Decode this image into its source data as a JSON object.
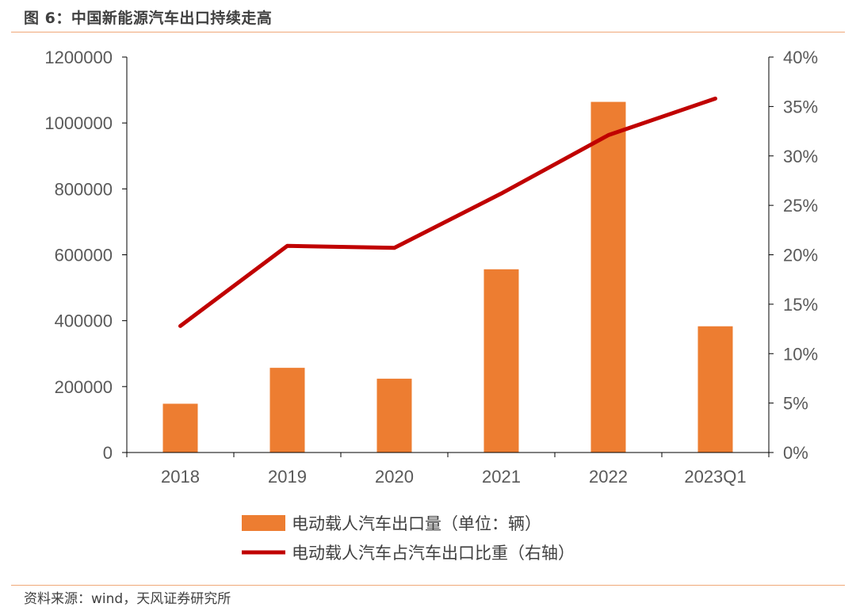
{
  "figure": {
    "title": "图 6：中国新能源汽车出口持续走高",
    "source": "资料来源：wind，天风证券研究所"
  },
  "colors": {
    "bar": "#ED7D31",
    "line": "#C00000",
    "axis": "#000000",
    "text": "#595959",
    "rule": "#F0A878"
  },
  "chart_data": {
    "type": "bar",
    "categories": [
      "2018",
      "2019",
      "2020",
      "2021",
      "2022",
      "2023Q1"
    ],
    "series": [
      {
        "name": "电动载人汽车出口量（单位：辆）",
        "type": "bar",
        "axis": "left",
        "values": [
          148000,
          257000,
          224000,
          556000,
          1064000,
          383000
        ]
      },
      {
        "name": "电动载人汽车占汽车出口比重（右轴）",
        "type": "line",
        "axis": "right",
        "values": [
          12.8,
          20.9,
          20.7,
          26.2,
          32.1,
          35.8
        ]
      }
    ],
    "y_left": {
      "ylim": [
        0,
        1200000
      ],
      "ticks": [
        "0",
        "200000",
        "400000",
        "600000",
        "800000",
        "1000000",
        "1200000"
      ]
    },
    "y_right": {
      "ylim": [
        0,
        40
      ],
      "ticks": [
        "0%",
        "5%",
        "10%",
        "15%",
        "20%",
        "25%",
        "30%",
        "35%",
        "40%"
      ]
    },
    "grid": false,
    "legend_position": "bottom"
  }
}
